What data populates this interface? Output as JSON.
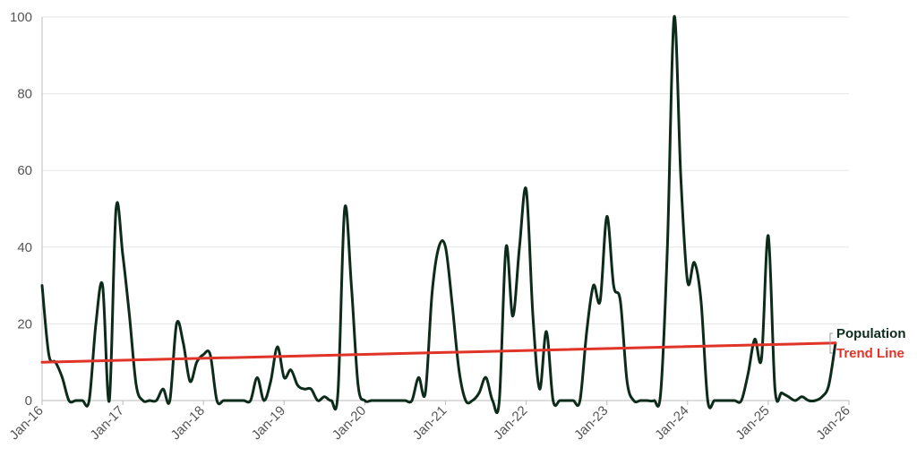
{
  "chart_data": {
    "type": "line",
    "x_label": "",
    "y_label": "",
    "ylim": [
      0,
      100
    ],
    "xlim": [
      "2016-01",
      "2026-01"
    ],
    "grid": "horizontal",
    "x_ticks": [
      "Jan-16",
      "Jan-17",
      "Jan-18",
      "Jan-19",
      "Jan-20",
      "Jan-21",
      "Jan-22",
      "Jan-23",
      "Jan-24",
      "Jan-25",
      "Jan-26"
    ],
    "y_ticks": [
      0,
      20,
      40,
      60,
      80,
      100
    ],
    "legend_position": "right",
    "series": [
      {
        "name": "Population",
        "color": "#0d2b1a",
        "smooth": true,
        "points": [
          [
            "2016-01",
            30
          ],
          [
            "2016-02",
            12
          ],
          [
            "2016-03",
            10
          ],
          [
            "2016-04",
            6
          ],
          [
            "2016-05",
            0
          ],
          [
            "2016-06",
            0
          ],
          [
            "2016-07",
            0
          ],
          [
            "2016-08",
            0
          ],
          [
            "2016-09",
            20
          ],
          [
            "2016-10",
            30
          ],
          [
            "2016-11",
            0
          ],
          [
            "2016-12",
            50
          ],
          [
            "2017-01",
            38
          ],
          [
            "2017-02",
            22
          ],
          [
            "2017-03",
            4
          ],
          [
            "2017-04",
            0
          ],
          [
            "2017-05",
            0
          ],
          [
            "2017-06",
            0
          ],
          [
            "2017-07",
            3
          ],
          [
            "2017-08",
            0
          ],
          [
            "2017-09",
            20
          ],
          [
            "2017-10",
            15
          ],
          [
            "2017-11",
            5
          ],
          [
            "2017-12",
            10
          ],
          [
            "2018-01",
            12
          ],
          [
            "2018-02",
            12
          ],
          [
            "2018-03",
            0
          ],
          [
            "2018-04",
            0
          ],
          [
            "2018-05",
            0
          ],
          [
            "2018-06",
            0
          ],
          [
            "2018-07",
            0
          ],
          [
            "2018-08",
            0
          ],
          [
            "2018-09",
            6
          ],
          [
            "2018-10",
            0
          ],
          [
            "2018-11",
            5
          ],
          [
            "2018-12",
            14
          ],
          [
            "2019-01",
            6
          ],
          [
            "2019-02",
            8
          ],
          [
            "2019-03",
            4
          ],
          [
            "2019-04",
            3
          ],
          [
            "2019-05",
            3
          ],
          [
            "2019-06",
            0
          ],
          [
            "2019-07",
            1
          ],
          [
            "2019-08",
            0
          ],
          [
            "2019-09",
            2
          ],
          [
            "2019-10",
            50
          ],
          [
            "2019-11",
            30
          ],
          [
            "2019-12",
            4
          ],
          [
            "2020-01",
            0
          ],
          [
            "2020-02",
            0
          ],
          [
            "2020-03",
            0
          ],
          [
            "2020-04",
            0
          ],
          [
            "2020-05",
            0
          ],
          [
            "2020-06",
            0
          ],
          [
            "2020-07",
            0
          ],
          [
            "2020-08",
            0
          ],
          [
            "2020-09",
            6
          ],
          [
            "2020-10",
            2
          ],
          [
            "2020-11",
            28
          ],
          [
            "2020-12",
            40
          ],
          [
            "2021-01",
            40
          ],
          [
            "2021-02",
            25
          ],
          [
            "2021-03",
            8
          ],
          [
            "2021-04",
            0
          ],
          [
            "2021-05",
            0
          ],
          [
            "2021-06",
            2
          ],
          [
            "2021-07",
            6
          ],
          [
            "2021-08",
            0
          ],
          [
            "2021-09",
            0
          ],
          [
            "2021-10",
            40
          ],
          [
            "2021-11",
            22
          ],
          [
            "2021-12",
            40
          ],
          [
            "2022-01",
            55
          ],
          [
            "2022-02",
            22
          ],
          [
            "2022-03",
            3
          ],
          [
            "2022-04",
            18
          ],
          [
            "2022-05",
            0
          ],
          [
            "2022-06",
            0
          ],
          [
            "2022-07",
            0
          ],
          [
            "2022-08",
            0
          ],
          [
            "2022-09",
            0
          ],
          [
            "2022-10",
            18
          ],
          [
            "2022-11",
            30
          ],
          [
            "2022-12",
            26
          ],
          [
            "2023-01",
            48
          ],
          [
            "2023-02",
            30
          ],
          [
            "2023-03",
            26
          ],
          [
            "2023-04",
            5
          ],
          [
            "2023-05",
            0
          ],
          [
            "2023-06",
            0
          ],
          [
            "2023-07",
            0
          ],
          [
            "2023-08",
            0
          ],
          [
            "2023-09",
            2
          ],
          [
            "2023-10",
            40
          ],
          [
            "2023-11",
            100
          ],
          [
            "2023-12",
            58
          ],
          [
            "2024-01",
            31
          ],
          [
            "2024-02",
            36
          ],
          [
            "2024-03",
            26
          ],
          [
            "2024-04",
            0
          ],
          [
            "2024-05",
            0
          ],
          [
            "2024-06",
            0
          ],
          [
            "2024-07",
            0
          ],
          [
            "2024-08",
            0
          ],
          [
            "2024-09",
            0
          ],
          [
            "2024-10",
            7
          ],
          [
            "2024-11",
            16
          ],
          [
            "2024-12",
            11
          ],
          [
            "2025-01",
            43
          ],
          [
            "2025-02",
            3
          ],
          [
            "2025-03",
            2
          ],
          [
            "2025-04",
            1
          ],
          [
            "2025-05",
            0
          ],
          [
            "2025-06",
            1
          ],
          [
            "2025-07",
            0
          ],
          [
            "2025-08",
            0
          ],
          [
            "2025-09",
            1
          ],
          [
            "2025-10",
            4
          ],
          [
            "2025-11",
            15
          ]
        ]
      },
      {
        "name": "Trend Line",
        "color": "#e03428",
        "smooth": false,
        "points": [
          [
            "2016-01",
            10
          ],
          [
            "2025-11",
            15
          ]
        ]
      }
    ]
  }
}
